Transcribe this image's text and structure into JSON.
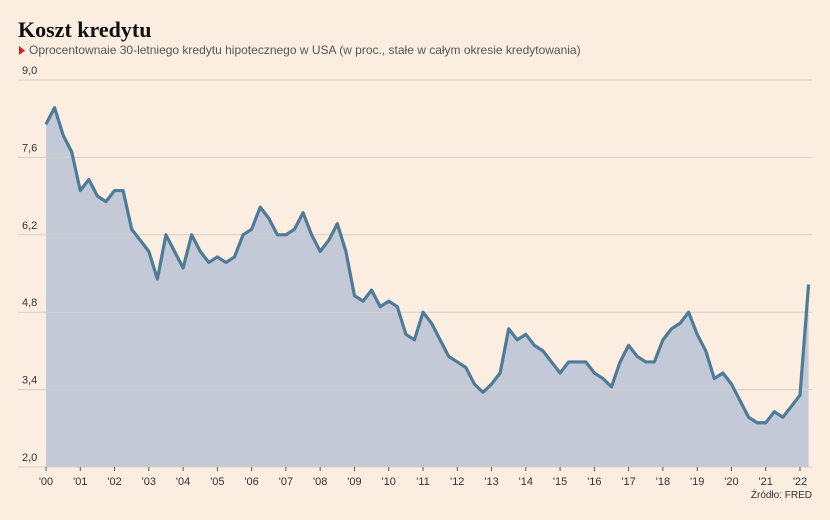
{
  "chart_data": {
    "type": "area",
    "title": "Koszt kredytu",
    "subtitle": "Oprocentownaie 30-letniego kredytu hipotecznego w USA (w proc., stałe w całym okresie kredytowania)",
    "source": "Źródło: FRED",
    "x": [
      2000,
      2000.25,
      2000.5,
      2000.75,
      2001,
      2001.25,
      2001.5,
      2001.75,
      2002,
      2002.25,
      2002.5,
      2002.75,
      2003,
      2003.25,
      2003.5,
      2003.75,
      2004,
      2004.25,
      2004.5,
      2004.75,
      2005,
      2005.25,
      2005.5,
      2005.75,
      2006,
      2006.25,
      2006.5,
      2006.75,
      2007,
      2007.25,
      2007.5,
      2007.75,
      2008,
      2008.25,
      2008.5,
      2008.75,
      2009,
      2009.25,
      2009.5,
      2009.75,
      2010,
      2010.25,
      2010.5,
      2010.75,
      2011,
      2011.25,
      2011.5,
      2011.75,
      2012,
      2012.25,
      2012.5,
      2012.75,
      2013,
      2013.25,
      2013.5,
      2013.75,
      2014,
      2014.25,
      2014.5,
      2014.75,
      2015,
      2015.25,
      2015.5,
      2015.75,
      2016,
      2016.25,
      2016.5,
      2016.75,
      2017,
      2017.25,
      2017.5,
      2017.75,
      2018,
      2018.25,
      2018.5,
      2018.75,
      2019,
      2019.25,
      2019.5,
      2019.75,
      2020,
      2020.25,
      2020.5,
      2020.75,
      2021,
      2021.25,
      2021.5,
      2021.75,
      2022,
      2022.25
    ],
    "values": [
      8.2,
      8.5,
      8.0,
      7.7,
      7.0,
      7.2,
      6.9,
      6.8,
      7.0,
      7.0,
      6.3,
      6.1,
      5.9,
      5.4,
      6.2,
      5.9,
      5.6,
      6.2,
      5.9,
      5.7,
      5.8,
      5.7,
      5.8,
      6.2,
      6.3,
      6.7,
      6.5,
      6.2,
      6.2,
      6.3,
      6.6,
      6.2,
      5.9,
      6.1,
      6.4,
      5.9,
      5.1,
      5.0,
      5.2,
      4.9,
      5.0,
      4.9,
      4.4,
      4.3,
      4.8,
      4.6,
      4.3,
      4.0,
      3.9,
      3.8,
      3.5,
      3.35,
      3.5,
      3.7,
      4.5,
      4.3,
      4.4,
      4.2,
      4.1,
      3.9,
      3.7,
      3.9,
      3.9,
      3.9,
      3.7,
      3.6,
      3.45,
      3.9,
      4.2,
      4.0,
      3.9,
      3.9,
      4.3,
      4.5,
      4.6,
      4.8,
      4.4,
      4.1,
      3.6,
      3.7,
      3.5,
      3.2,
      2.9,
      2.8,
      2.8,
      3.0,
      2.9,
      3.1,
      3.3,
      5.3
    ],
    "color": "#4d7b98",
    "fill": "#c3c9d6",
    "xlim": [
      2000,
      2022.35
    ],
    "xticks": [
      {
        "value": 2000,
        "label": "'00"
      },
      {
        "value": 2001,
        "label": "'01"
      },
      {
        "value": 2002,
        "label": "'02"
      },
      {
        "value": 2003,
        "label": "'03"
      },
      {
        "value": 2004,
        "label": "'04"
      },
      {
        "value": 2005,
        "label": "'05"
      },
      {
        "value": 2006,
        "label": "'06"
      },
      {
        "value": 2007,
        "label": "'07"
      },
      {
        "value": 2008,
        "label": "'08"
      },
      {
        "value": 2009,
        "label": "'09"
      },
      {
        "value": 2010,
        "label": "'10"
      },
      {
        "value": 2011,
        "label": "'11"
      },
      {
        "value": 2012,
        "label": "'12"
      },
      {
        "value": 2013,
        "label": "'13"
      },
      {
        "value": 2014,
        "label": "'14"
      },
      {
        "value": 2015,
        "label": "'15"
      },
      {
        "value": 2016,
        "label": "'16"
      },
      {
        "value": 2017,
        "label": "'17"
      },
      {
        "value": 2018,
        "label": "'18"
      },
      {
        "value": 2019,
        "label": "'19"
      },
      {
        "value": 2020,
        "label": "'20"
      },
      {
        "value": 2021,
        "label": "'21"
      },
      {
        "value": 2022,
        "label": "'22"
      }
    ],
    "ylim": [
      2,
      9
    ],
    "yticks": [
      {
        "value": 2,
        "label": "2,0"
      },
      {
        "value": 3.4,
        "label": "3,4"
      },
      {
        "value": 4.8,
        "label": "4,8"
      },
      {
        "value": 6.2,
        "label": "6,2"
      },
      {
        "value": 7.6,
        "label": "7,6"
      },
      {
        "value": 9,
        "label": "9,0"
      }
    ],
    "grid": true
  }
}
